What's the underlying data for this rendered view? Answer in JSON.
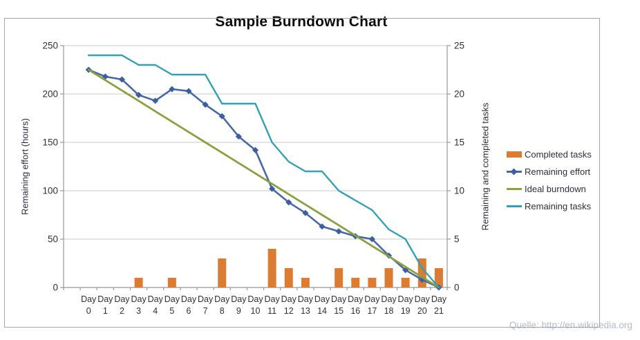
{
  "chart": {
    "title": "Sample Burndown Chart",
    "left_axis": {
      "title": "Remaining effort (hours)",
      "ticks": [
        250,
        200,
        150,
        100,
        50,
        0
      ]
    },
    "right_axis": {
      "title": "Remaining and completed tasks",
      "ticks": [
        25,
        20,
        15,
        10,
        5,
        0
      ]
    },
    "x_axis": {
      "prefix": "Day",
      "days": [
        0,
        1,
        2,
        3,
        4,
        5,
        6,
        7,
        8,
        9,
        10,
        11,
        12,
        13,
        14,
        15,
        16,
        17,
        18,
        19,
        20,
        21
      ]
    },
    "legend": {
      "items": [
        {
          "label": "Completed tasks",
          "swatch": "bar",
          "color_key": "completed"
        },
        {
          "label": "Remaining effort",
          "swatch": "line-diamond",
          "color_key": "effort"
        },
        {
          "label": "Ideal burndown",
          "swatch": "line",
          "color_key": "ideal"
        },
        {
          "label": "Remaining tasks",
          "swatch": "line",
          "color_key": "tasks"
        }
      ]
    }
  },
  "chart_data": {
    "type": "bar+line combo (bars and tasks on right axis, effort on left axis; 1 task = 10 hours)",
    "title": "Sample Burndown Chart",
    "categories": [
      "Day 0",
      "Day 1",
      "Day 2",
      "Day 3",
      "Day 4",
      "Day 5",
      "Day 6",
      "Day 7",
      "Day 8",
      "Day 9",
      "Day 10",
      "Day 11",
      "Day 12",
      "Day 13",
      "Day 14",
      "Day 15",
      "Day 16",
      "Day 17",
      "Day 18",
      "Day 19",
      "Day 20",
      "Day 21"
    ],
    "series": [
      {
        "name": "Completed tasks",
        "type": "bar",
        "axis": "right",
        "marker": "none",
        "values": [
          0,
          0,
          0,
          1,
          0,
          1,
          0,
          0,
          3,
          0,
          0,
          4,
          2,
          1,
          0,
          2,
          1,
          1,
          2,
          1,
          3,
          2
        ]
      },
      {
        "name": "Remaining effort",
        "type": "line",
        "axis": "left",
        "marker": "diamond",
        "values": [
          225,
          218,
          215,
          199,
          193,
          205,
          203,
          189,
          177,
          156,
          142,
          102,
          88,
          77,
          63,
          58,
          53,
          50,
          33,
          18,
          8,
          0
        ]
      },
      {
        "name": "Ideal burndown",
        "type": "line",
        "axis": "left",
        "marker": "none",
        "values": [
          225,
          214.3,
          203.6,
          192.9,
          182.1,
          171.4,
          160.7,
          150,
          139.3,
          128.6,
          117.9,
          107.1,
          96.4,
          85.7,
          75,
          64.3,
          53.6,
          42.9,
          32.1,
          21.4,
          10.7,
          0
        ]
      },
      {
        "name": "Remaining tasks",
        "type": "line",
        "axis": "right",
        "marker": "none",
        "values": [
          24,
          24,
          24,
          23,
          23,
          22,
          22,
          22,
          19,
          19,
          19,
          15,
          13,
          12,
          12,
          10,
          9,
          8,
          6,
          5,
          2,
          0
        ]
      }
    ],
    "ylabel_left": "Remaining effort (hours)",
    "ylabel_right": "Remaining and completed tasks",
    "ylim_left": [
      0,
      250
    ],
    "ylim_right": [
      0,
      25
    ],
    "grid": "horizontal gridlines every 50 hours (5 tasks)",
    "legend_position": "right"
  },
  "colors": {
    "completed": "#DC7B32",
    "effort": "#4668A6",
    "effort_marker": "#3C5FA2",
    "ideal": "#8BA03F",
    "tasks": "#31A0B6",
    "gridline": "#C8C8C8",
    "axis": "#969696",
    "tick_text": "#2E2E38",
    "title_text": "#0B0B0B",
    "source_text": "#B4B8CB",
    "frame_border": "#A3A3A8"
  },
  "source_note": "Quelle: http://en.wikipedia.org"
}
